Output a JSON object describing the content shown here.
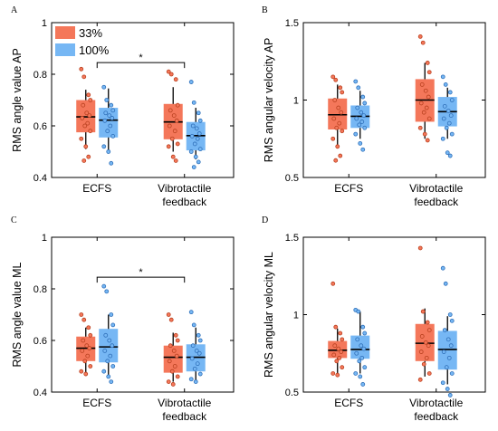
{
  "chart_data": [
    {
      "type": "box",
      "panel_label": "A",
      "ylabel": "RMS angle value AP",
      "ylim": [
        0.4,
        1.0
      ],
      "yticks": [
        "0.4",
        "0.6",
        "0.8",
        "1"
      ],
      "categories": [
        "ECFS",
        "Vibrotactile\nfeedback"
      ],
      "legend": {
        "position": "top-left",
        "entries": [
          "33%",
          "100%"
        ]
      },
      "significance": {
        "label": "*",
        "between": [
          "ECFS",
          "Vibrotactile\nfeedback"
        ],
        "y": 0.845
      },
      "series": [
        {
          "name": "33%",
          "color": "#f4775a",
          "boxes": [
            {
              "q1": 0.575,
              "median": 0.635,
              "q3": 0.7,
              "whisker_low": 0.51,
              "whisker_high": 0.74,
              "points": [
                0.82,
                0.79,
                0.72,
                0.7,
                0.68,
                0.65,
                0.64,
                0.63,
                0.61,
                0.6,
                0.58,
                0.55,
                0.52,
                0.48,
                0.465
              ]
            },
            {
              "q1": 0.548,
              "median": 0.615,
              "q3": 0.685,
              "whisker_low": 0.5,
              "whisker_high": 0.75,
              "points": [
                0.81,
                0.8,
                0.78,
                0.68,
                0.66,
                0.64,
                0.62,
                0.6,
                0.58,
                0.55,
                0.53,
                0.52,
                0.48,
                0.465
              ]
            }
          ]
        },
        {
          "name": "100%",
          "color": "#76b7f4",
          "boxes": [
            {
              "q1": 0.555,
              "median": 0.622,
              "q3": 0.67,
              "whisker_low": 0.5,
              "whisker_high": 0.745,
              "points": [
                0.75,
                0.7,
                0.68,
                0.66,
                0.65,
                0.64,
                0.63,
                0.62,
                0.6,
                0.58,
                0.56,
                0.52,
                0.5,
                0.455
              ]
            },
            {
              "q1": 0.505,
              "median": 0.562,
              "q3": 0.615,
              "whisker_low": 0.47,
              "whisker_high": 0.67,
              "points": [
                0.77,
                0.69,
                0.65,
                0.62,
                0.6,
                0.59,
                0.57,
                0.56,
                0.55,
                0.53,
                0.51,
                0.5,
                0.48,
                0.46,
                0.44
              ]
            }
          ]
        }
      ]
    },
    {
      "type": "box",
      "panel_label": "B",
      "ylabel": "RMS angular velocity AP",
      "ylim": [
        0.5,
        1.5
      ],
      "yticks": [
        "0.5",
        "1",
        "1.5"
      ],
      "categories": [
        "ECFS",
        "Vibrotactile\nfeedback"
      ],
      "series": [
        {
          "name": "33%",
          "color": "#f4775a",
          "boxes": [
            {
              "q1": 0.81,
              "median": 0.905,
              "q3": 1.01,
              "whisker_low": 0.7,
              "whisker_high": 1.1,
              "points": [
                1.15,
                1.13,
                1.08,
                1.05,
                1.0,
                0.95,
                0.92,
                0.88,
                0.85,
                0.82,
                0.8,
                0.75,
                0.7,
                0.64,
                0.61
              ]
            },
            {
              "q1": 0.86,
              "median": 1.0,
              "q3": 1.135,
              "whisker_low": 0.75,
              "whisker_high": 1.24,
              "points": [
                1.41,
                1.37,
                1.24,
                1.18,
                1.1,
                1.06,
                1.02,
                0.98,
                0.95,
                0.92,
                0.88,
                0.82,
                0.78,
                0.74
              ]
            }
          ]
        },
        {
          "name": "100%",
          "color": "#76b7f4",
          "boxes": [
            {
              "q1": 0.82,
              "median": 0.895,
              "q3": 0.965,
              "whisker_low": 0.75,
              "whisker_high": 1.06,
              "points": [
                1.12,
                1.08,
                1.02,
                0.98,
                0.95,
                0.92,
                0.9,
                0.88,
                0.86,
                0.84,
                0.82,
                0.78,
                0.72,
                0.68
              ]
            },
            {
              "q1": 0.83,
              "median": 0.925,
              "q3": 1.02,
              "whisker_low": 0.75,
              "whisker_high": 1.08,
              "points": [
                1.15,
                1.1,
                1.05,
                1.0,
                0.96,
                0.93,
                0.9,
                0.88,
                0.85,
                0.82,
                0.78,
                0.75,
                0.66,
                0.64
              ]
            }
          ]
        }
      ]
    },
    {
      "type": "box",
      "panel_label": "C",
      "ylabel": "RMS angle value ML",
      "ylim": [
        0.4,
        1.0
      ],
      "yticks": [
        "0.4",
        "0.6",
        "0.8",
        "1"
      ],
      "categories": [
        "ECFS",
        "Vibrotactile\nfeedback"
      ],
      "significance": {
        "label": "*",
        "between": [
          "ECFS",
          "Vibrotactile\nfeedback"
        ],
        "y": 0.845
      },
      "series": [
        {
          "name": "33%",
          "color": "#f4775a",
          "boxes": [
            {
              "q1": 0.52,
              "median": 0.57,
              "q3": 0.615,
              "whisker_low": 0.47,
              "whisker_high": 0.65,
              "points": [
                0.7,
                0.68,
                0.65,
                0.62,
                0.6,
                0.58,
                0.57,
                0.56,
                0.54,
                0.52,
                0.5,
                0.48,
                0.47
              ]
            },
            {
              "q1": 0.475,
              "median": 0.535,
              "q3": 0.58,
              "whisker_low": 0.44,
              "whisker_high": 0.63,
              "points": [
                0.7,
                0.68,
                0.62,
                0.6,
                0.58,
                0.56,
                0.54,
                0.52,
                0.5,
                0.48,
                0.46,
                0.44,
                0.43
              ]
            }
          ]
        },
        {
          "name": "100%",
          "color": "#76b7f4",
          "boxes": [
            {
              "q1": 0.515,
              "median": 0.575,
              "q3": 0.645,
              "whisker_low": 0.46,
              "whisker_high": 0.7,
              "points": [
                0.81,
                0.79,
                0.7,
                0.66,
                0.62,
                0.6,
                0.58,
                0.56,
                0.54,
                0.52,
                0.5,
                0.48,
                0.46,
                0.44
              ]
            },
            {
              "q1": 0.48,
              "median": 0.535,
              "q3": 0.585,
              "whisker_low": 0.44,
              "whisker_high": 0.65,
              "points": [
                0.71,
                0.66,
                0.62,
                0.6,
                0.58,
                0.56,
                0.55,
                0.53,
                0.51,
                0.49,
                0.47,
                0.45,
                0.44
              ]
            }
          ]
        }
      ]
    },
    {
      "type": "box",
      "panel_label": "D",
      "ylabel": "RMS angular velocity ML",
      "ylim": [
        0.5,
        1.5
      ],
      "yticks": [
        "0.5",
        "1",
        "1.5"
      ],
      "categories": [
        "ECFS",
        "Vibrotactile\nfeedback"
      ],
      "series": [
        {
          "name": "33%",
          "color": "#f4775a",
          "boxes": [
            {
              "q1": 0.72,
              "median": 0.77,
              "q3": 0.83,
              "whisker_low": 0.62,
              "whisker_high": 0.91,
              "points": [
                1.2,
                0.92,
                0.88,
                0.84,
                0.8,
                0.78,
                0.76,
                0.74,
                0.72,
                0.7,
                0.66,
                0.62,
                0.61
              ]
            },
            {
              "q1": 0.7,
              "median": 0.815,
              "q3": 0.94,
              "whisker_low": 0.6,
              "whisker_high": 1.04,
              "points": [
                1.43,
                1.02,
                0.95,
                0.9,
                0.86,
                0.82,
                0.8,
                0.76,
                0.72,
                0.68,
                0.62,
                0.58
              ]
            }
          ]
        },
        {
          "name": "100%",
          "color": "#76b7f4",
          "boxes": [
            {
              "q1": 0.715,
              "median": 0.775,
              "q3": 0.865,
              "whisker_low": 0.62,
              "whisker_high": 1.02,
              "points": [
                1.03,
                1.02,
                0.92,
                0.88,
                0.84,
                0.8,
                0.78,
                0.75,
                0.72,
                0.7,
                0.66,
                0.62,
                0.6,
                0.55
              ]
            },
            {
              "q1": 0.645,
              "median": 0.775,
              "q3": 0.895,
              "whisker_low": 0.55,
              "whisker_high": 0.99,
              "points": [
                1.3,
                1.2,
                1.0,
                0.96,
                0.9,
                0.84,
                0.8,
                0.76,
                0.72,
                0.66,
                0.62,
                0.56,
                0.52,
                0.48
              ]
            }
          ]
        }
      ]
    }
  ]
}
